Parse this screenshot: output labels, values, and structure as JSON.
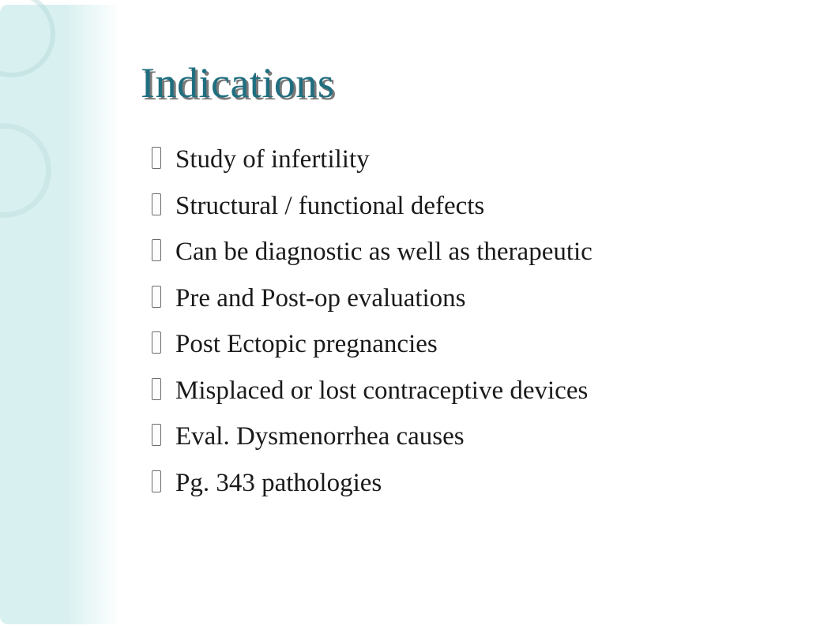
{
  "slide": {
    "title": "Indications",
    "title_color": "#1f6f80",
    "title_shadow_color": "#7a7a7a",
    "title_fontsize": 54,
    "body_fontsize": 33,
    "body_color": "#1a1a1a",
    "accent_bg_from": "#d9f0f0",
    "accent_bg_to": "#ffffff",
    "circle_border_color": "rgba(180,215,218,0.45)",
    "bullets": [
      "Study of infertility",
      "Structural / functional defects",
      "Can be diagnostic as well as therapeutic",
      "Pre and Post-op evaluations",
      "Post Ectopic pregnancies",
      "Misplaced or lost contraceptive devices",
      "Eval. Dysmenorrhea causes",
      "Pg. 343 pathologies"
    ]
  }
}
